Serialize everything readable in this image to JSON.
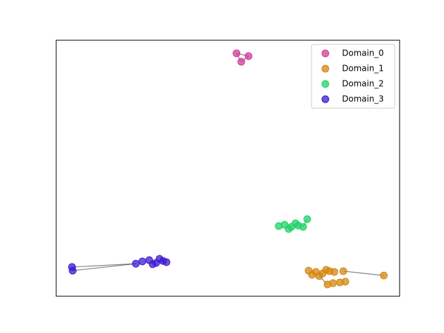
{
  "chart_data": {
    "type": "scatter",
    "xlim": [
      0,
      100
    ],
    "ylim": [
      0,
      100
    ],
    "legend": "upper right",
    "series": [
      {
        "name": "Domain_0",
        "color": "#d13a9b",
        "x": [
          52.5,
          56.0,
          53.9
        ],
        "y": [
          94.9,
          93.8,
          91.6
        ],
        "edges": [
          [
            0,
            1
          ],
          [
            1,
            2
          ],
          [
            0,
            2
          ]
        ]
      },
      {
        "name": "Domain_1",
        "color": "#d4870f",
        "x": [
          73.5,
          75.6,
          77.6,
          79.6,
          74.5,
          78.6,
          81.0,
          83.6,
          95.4,
          79.0,
          80.6,
          82.6,
          84.2,
          76.6
        ],
        "y": [
          10.0,
          9.5,
          8.9,
          9.8,
          8.4,
          10.3,
          9.5,
          9.8,
          8.1,
          4.6,
          5.1,
          5.4,
          5.7,
          7.9
        ],
        "edges": [
          [
            7,
            8
          ],
          [
            13,
            9
          ]
        ]
      },
      {
        "name": "Domain_2",
        "color": "#1fd166",
        "x": [
          64.8,
          66.5,
          68.5,
          70.5,
          71.9,
          67.7,
          69.7,
          73.1
        ],
        "y": [
          27.4,
          27.9,
          27.1,
          27.6,
          27.1,
          26.3,
          28.5,
          30.1
        ],
        "edges": [
          [
            4,
            7
          ]
        ]
      },
      {
        "name": "Domain_3",
        "color": "#3d1ad0",
        "x": [
          25.1,
          27.1,
          29.1,
          31.1,
          32.1,
          28.1,
          30.1,
          23.2,
          4.6,
          4.8
        ],
        "y": [
          13.6,
          14.1,
          13.0,
          13.8,
          13.3,
          12.5,
          14.6,
          12.7,
          11.4,
          10.0
        ],
        "edges": [
          [
            7,
            8
          ],
          [
            7,
            9
          ]
        ]
      }
    ]
  }
}
